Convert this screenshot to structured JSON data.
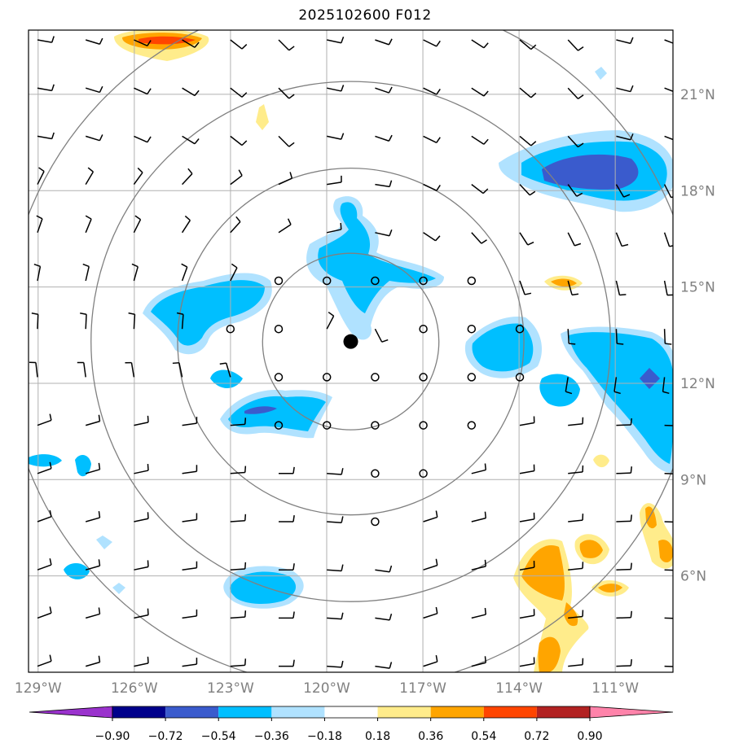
{
  "title": "2025102600 F012",
  "map": {
    "lon_labels": [
      "129°W",
      "126°W",
      "123°W",
      "120°W",
      "117°W",
      "114°W",
      "111°W"
    ],
    "lat_labels": [
      "21°N",
      "18°N",
      "15°N",
      "12°N",
      "9°N",
      "6°N"
    ],
    "lon_range": [
      -129.3,
      -109.2
    ],
    "lat_range": [
      3.0,
      23.0
    ],
    "storm_center": {
      "lon": -119.25,
      "lat": 13.3
    },
    "range_rings_deg": [
      2.75,
      5.4,
      8.1,
      10.8
    ],
    "grid": true
  },
  "colorbar": {
    "tick_labels": [
      "−0.90",
      "−0.72",
      "−0.54",
      "−0.36",
      "−0.18",
      "0.18",
      "0.36",
      "0.54",
      "0.72",
      "0.90"
    ],
    "colors": [
      "#9a32cd",
      "#00008b",
      "#3a5bcd",
      "#00bfff",
      "#b0e2ff",
      "#ffffff",
      "#ffec8b",
      "#ffa500",
      "#ff4500",
      "#b22222",
      "#ff83aa"
    ]
  },
  "colors": {
    "grid": "#b0b0b0",
    "ring": "#808080",
    "light_blue": "#b0e2ff",
    "blue": "#00bfff",
    "dark_blue": "#3a5bcd",
    "yellow": "#ffec8b",
    "orange": "#ffa500",
    "red": "#ff4500"
  }
}
